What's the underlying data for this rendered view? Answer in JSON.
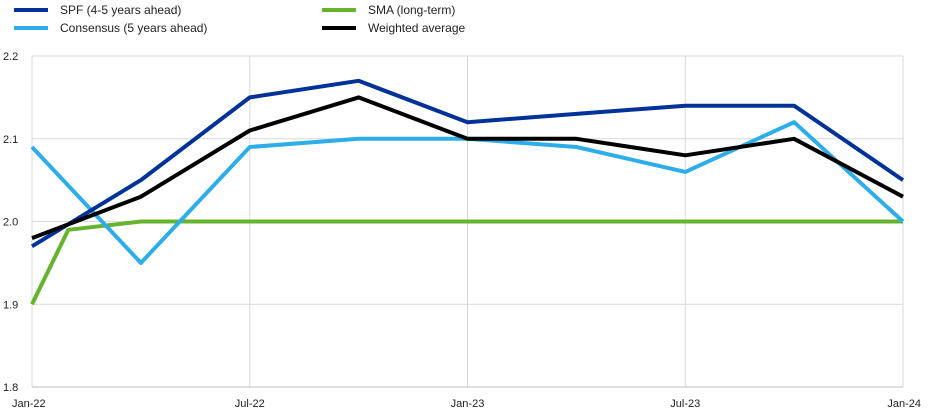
{
  "chart_data": {
    "type": "line",
    "title": "",
    "xlabel": "",
    "ylabel": "",
    "x": [
      "Jan-22",
      "Apr-22",
      "Jul-22",
      "Oct-22",
      "Jan-23",
      "Apr-23",
      "Jul-23",
      "Oct-23",
      "Jan-24"
    ],
    "x_tick_labels": [
      "Jan-22",
      "Jul-22",
      "Jan-23",
      "Jul-23",
      "Jan-24"
    ],
    "ylim": [
      1.8,
      2.2
    ],
    "y_ticks": [
      "1.8",
      "1.9",
      "2.0",
      "2.1",
      "2.2"
    ],
    "grid": "vertical and horizontal",
    "legend": "top",
    "series": [
      {
        "name": "SPF (4-5 years ahead)",
        "color": "#003299",
        "x": [
          "Jan-22",
          "Apr-22",
          "Jul-22",
          "Oct-22",
          "Jan-23",
          "Apr-23",
          "Jul-23",
          "Oct-23",
          "Jan-24"
        ],
        "values": [
          1.97,
          2.05,
          2.15,
          2.17,
          2.12,
          2.13,
          2.14,
          2.14,
          2.05
        ]
      },
      {
        "name": "Consensus (5 years ahead)",
        "color": "#2dadea",
        "x": [
          "Jan-22",
          "Apr-22",
          "Jul-22",
          "Oct-22",
          "Jan-23",
          "Apr-23",
          "Jul-23",
          "Oct-23",
          "Jan-24"
        ],
        "values": [
          2.09,
          1.95,
          2.09,
          2.1,
          2.1,
          2.09,
          2.06,
          2.12,
          2.0
        ]
      },
      {
        "name": "SMA (long-term)",
        "color": "#65b32e",
        "x": [
          "Jan-22",
          "Feb-22",
          "Apr-22",
          "Jul-22",
          "Oct-22",
          "Jan-23",
          "Apr-23",
          "Jul-23",
          "Oct-23",
          "Jan-24"
        ],
        "values": [
          1.9,
          1.99,
          2.0,
          2.0,
          2.0,
          2.0,
          2.0,
          2.0,
          2.0,
          2.0
        ]
      },
      {
        "name": "Weighted average",
        "color": "#000000",
        "x": [
          "Jan-22",
          "Apr-22",
          "Jul-22",
          "Oct-22",
          "Jan-23",
          "Apr-23",
          "Jul-23",
          "Oct-23",
          "Jan-24"
        ],
        "values": [
          1.98,
          2.03,
          2.11,
          2.15,
          2.1,
          2.1,
          2.08,
          2.1,
          2.03
        ]
      }
    ]
  }
}
